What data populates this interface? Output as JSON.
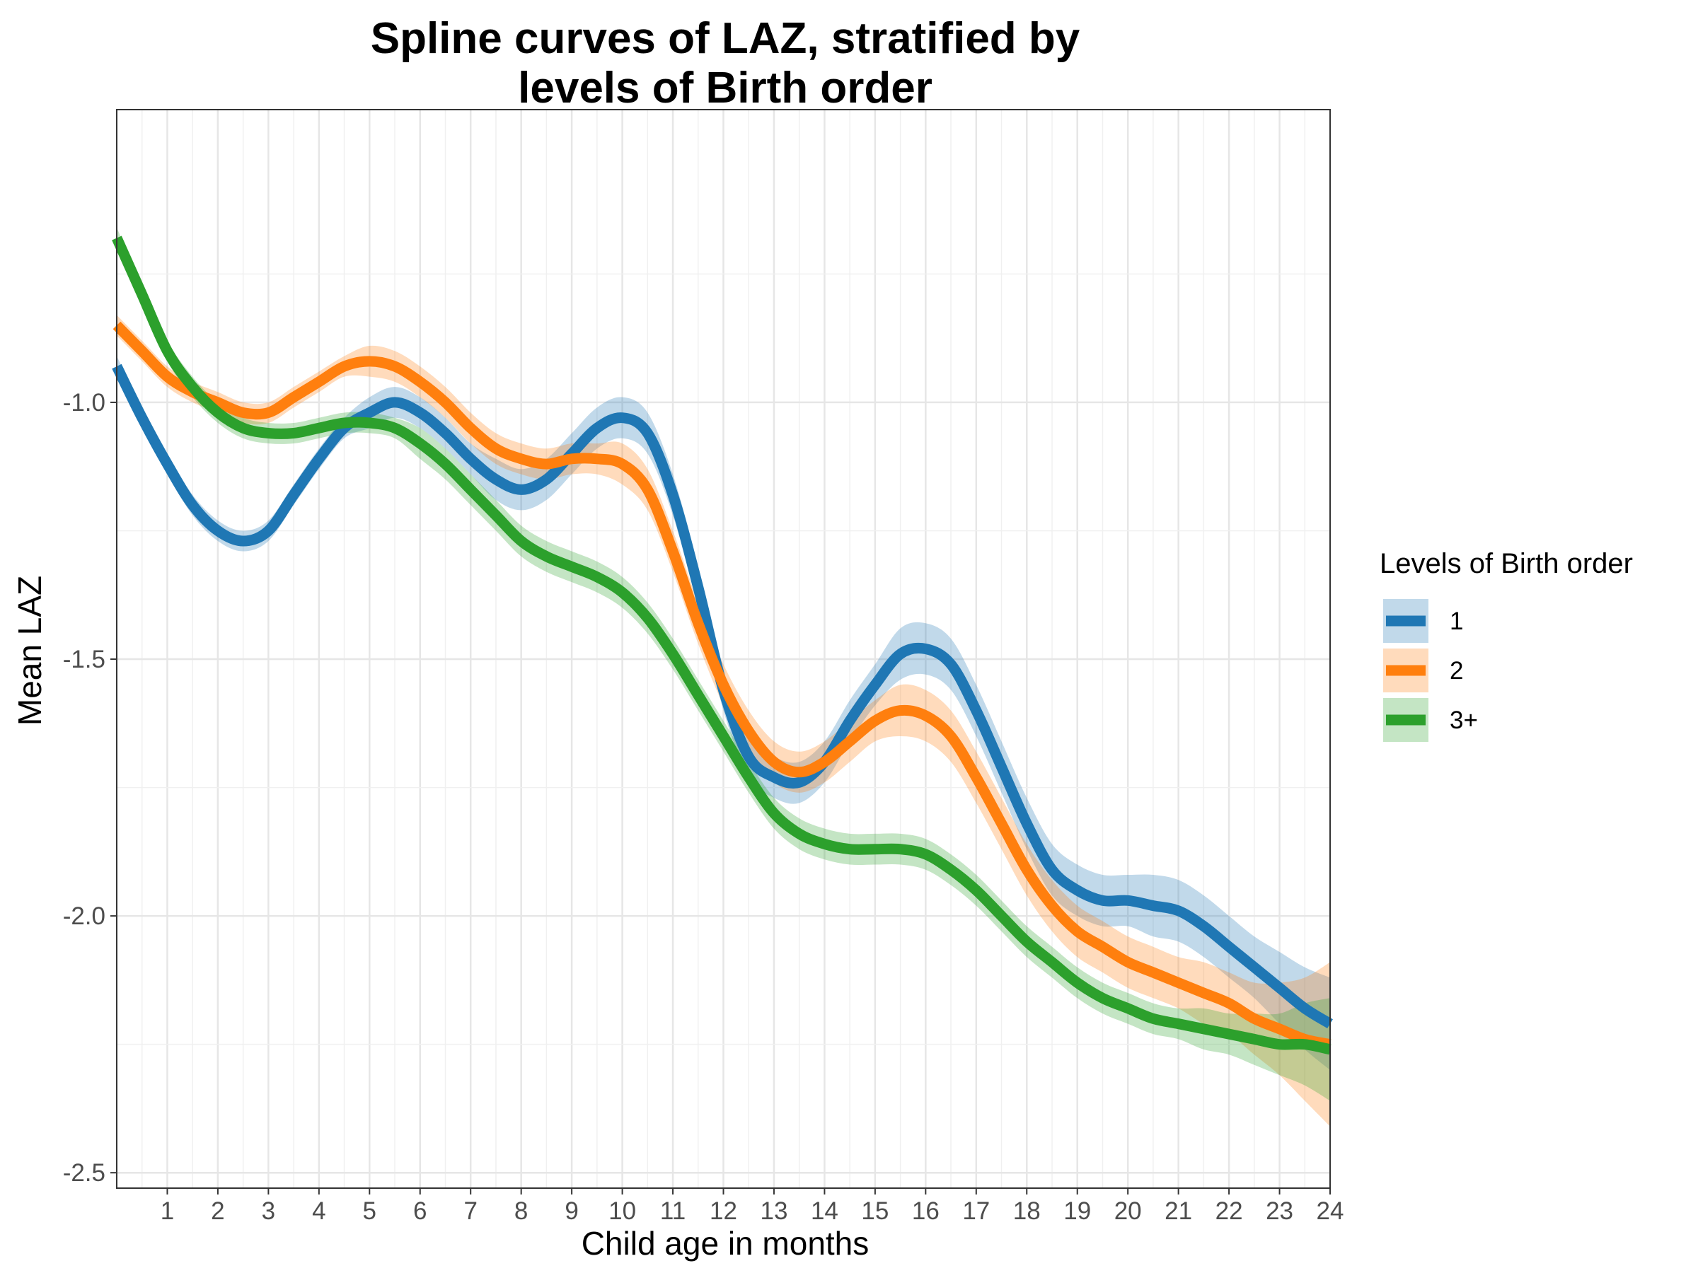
{
  "chart_data": {
    "type": "line",
    "title_lines": [
      "Spline curves of LAZ, stratified by",
      "levels of Birth order"
    ],
    "xlabel": "Child age in months",
    "ylabel": "Mean LAZ",
    "xlim": [
      0,
      24
    ],
    "ylim": [
      -2.53,
      -0.43
    ],
    "x_ticks": [
      1,
      2,
      3,
      4,
      5,
      6,
      7,
      8,
      9,
      10,
      11,
      12,
      13,
      14,
      15,
      16,
      17,
      18,
      19,
      20,
      21,
      22,
      23,
      24
    ],
    "x_tick_labels": [
      "1",
      "2",
      "3",
      "4",
      "5",
      "6",
      "7",
      "8",
      "9",
      "10",
      "11",
      "12",
      "13",
      "14",
      "15",
      "16",
      "17",
      "18",
      "19",
      "20",
      "21",
      "22",
      "23",
      "24"
    ],
    "y_ticks": [
      -2.5,
      -2.0,
      -1.5,
      -1.0
    ],
    "y_tick_labels": [
      "-2.5",
      "-2.0",
      "-1.5",
      "-1.0"
    ],
    "grid": true,
    "legend": {
      "title": "Levels of Birth order",
      "position": "right"
    },
    "series": [
      {
        "name": "1",
        "color": "#1f77b4",
        "x": [
          0,
          0.5,
          1,
          1.5,
          2,
          2.5,
          3,
          3.5,
          4,
          4.5,
          5,
          5.5,
          6,
          6.5,
          7,
          7.5,
          8,
          8.5,
          9,
          9.5,
          10,
          10.5,
          11,
          11.5,
          12,
          12.5,
          13,
          13.5,
          14,
          14.5,
          15,
          15.5,
          16,
          16.5,
          17,
          17.5,
          18,
          18.5,
          19,
          19.5,
          20,
          20.5,
          21,
          21.5,
          22,
          22.5,
          23,
          23.5,
          24
        ],
        "y": [
          -0.93,
          -1.03,
          -1.12,
          -1.2,
          -1.25,
          -1.27,
          -1.25,
          -1.18,
          -1.11,
          -1.05,
          -1.02,
          -1.0,
          -1.02,
          -1.06,
          -1.11,
          -1.15,
          -1.17,
          -1.15,
          -1.1,
          -1.05,
          -1.03,
          -1.06,
          -1.18,
          -1.36,
          -1.56,
          -1.69,
          -1.73,
          -1.74,
          -1.7,
          -1.62,
          -1.55,
          -1.49,
          -1.48,
          -1.51,
          -1.6,
          -1.71,
          -1.82,
          -1.91,
          -1.95,
          -1.97,
          -1.97,
          -1.98,
          -1.99,
          -2.02,
          -2.06,
          -2.1,
          -2.14,
          -2.18,
          -2.21
        ],
        "ci_halfwidth": [
          0.02,
          0.02,
          0.02,
          0.02,
          0.02,
          0.02,
          0.02,
          0.02,
          0.02,
          0.02,
          0.03,
          0.03,
          0.03,
          0.03,
          0.03,
          0.04,
          0.04,
          0.04,
          0.04,
          0.04,
          0.04,
          0.04,
          0.04,
          0.04,
          0.04,
          0.04,
          0.04,
          0.04,
          0.04,
          0.04,
          0.04,
          0.05,
          0.05,
          0.05,
          0.05,
          0.05,
          0.05,
          0.05,
          0.05,
          0.05,
          0.05,
          0.06,
          0.06,
          0.06,
          0.06,
          0.06,
          0.07,
          0.08,
          0.09
        ]
      },
      {
        "name": "2",
        "color": "#ff7f0e",
        "x": [
          0,
          0.5,
          1,
          1.5,
          2,
          2.5,
          3,
          3.5,
          4,
          4.5,
          5,
          5.5,
          6,
          6.5,
          7,
          7.5,
          8,
          8.5,
          9,
          9.5,
          10,
          10.5,
          11,
          11.5,
          12,
          12.5,
          13,
          13.5,
          14,
          14.5,
          15,
          15.5,
          16,
          16.5,
          17,
          17.5,
          18,
          18.5,
          19,
          19.5,
          20,
          20.5,
          21,
          21.5,
          22,
          22.5,
          23,
          23.5,
          24
        ],
        "y": [
          -0.85,
          -0.9,
          -0.95,
          -0.98,
          -1.0,
          -1.02,
          -1.02,
          -0.99,
          -0.96,
          -0.93,
          -0.92,
          -0.93,
          -0.96,
          -1.0,
          -1.05,
          -1.09,
          -1.11,
          -1.12,
          -1.11,
          -1.11,
          -1.12,
          -1.17,
          -1.29,
          -1.43,
          -1.55,
          -1.64,
          -1.7,
          -1.72,
          -1.7,
          -1.66,
          -1.62,
          -1.6,
          -1.61,
          -1.65,
          -1.73,
          -1.82,
          -1.91,
          -1.98,
          -2.03,
          -2.06,
          -2.09,
          -2.11,
          -2.13,
          -2.15,
          -2.17,
          -2.2,
          -2.22,
          -2.24,
          -2.25
        ],
        "ci_halfwidth": [
          0.02,
          0.02,
          0.02,
          0.02,
          0.02,
          0.02,
          0.02,
          0.02,
          0.02,
          0.02,
          0.03,
          0.03,
          0.03,
          0.03,
          0.03,
          0.03,
          0.03,
          0.03,
          0.03,
          0.03,
          0.04,
          0.04,
          0.04,
          0.04,
          0.04,
          0.04,
          0.04,
          0.04,
          0.04,
          0.04,
          0.04,
          0.05,
          0.05,
          0.05,
          0.05,
          0.05,
          0.05,
          0.05,
          0.05,
          0.05,
          0.05,
          0.05,
          0.05,
          0.06,
          0.06,
          0.07,
          0.09,
          0.12,
          0.16
        ]
      },
      {
        "name": "3+",
        "color": "#2ca02c",
        "x": [
          0,
          0.5,
          1,
          1.5,
          2,
          2.5,
          3,
          3.5,
          4,
          4.5,
          5,
          5.5,
          6,
          6.5,
          7,
          7.5,
          8,
          8.5,
          9,
          9.5,
          10,
          10.5,
          11,
          11.5,
          12,
          12.5,
          13,
          13.5,
          14,
          14.5,
          15,
          15.5,
          16,
          16.5,
          17,
          17.5,
          18,
          18.5,
          19,
          19.5,
          20,
          20.5,
          21,
          21.5,
          22,
          22.5,
          23,
          23.5,
          24
        ],
        "y": [
          -0.68,
          -0.79,
          -0.9,
          -0.97,
          -1.02,
          -1.05,
          -1.06,
          -1.06,
          -1.05,
          -1.04,
          -1.04,
          -1.05,
          -1.08,
          -1.12,
          -1.17,
          -1.22,
          -1.27,
          -1.3,
          -1.32,
          -1.34,
          -1.37,
          -1.42,
          -1.49,
          -1.57,
          -1.65,
          -1.73,
          -1.8,
          -1.84,
          -1.86,
          -1.87,
          -1.87,
          -1.87,
          -1.88,
          -1.91,
          -1.95,
          -2.0,
          -2.05,
          -2.09,
          -2.13,
          -2.16,
          -2.18,
          -2.2,
          -2.21,
          -2.22,
          -2.23,
          -2.24,
          -2.25,
          -2.25,
          -2.26
        ],
        "ci_halfwidth": [
          0.02,
          0.02,
          0.02,
          0.02,
          0.02,
          0.02,
          0.02,
          0.02,
          0.02,
          0.02,
          0.02,
          0.02,
          0.03,
          0.03,
          0.03,
          0.03,
          0.03,
          0.03,
          0.03,
          0.03,
          0.03,
          0.03,
          0.03,
          0.03,
          0.03,
          0.03,
          0.03,
          0.03,
          0.03,
          0.03,
          0.03,
          0.03,
          0.03,
          0.03,
          0.03,
          0.03,
          0.03,
          0.03,
          0.03,
          0.03,
          0.03,
          0.03,
          0.03,
          0.04,
          0.04,
          0.05,
          0.06,
          0.08,
          0.1
        ]
      }
    ]
  }
}
